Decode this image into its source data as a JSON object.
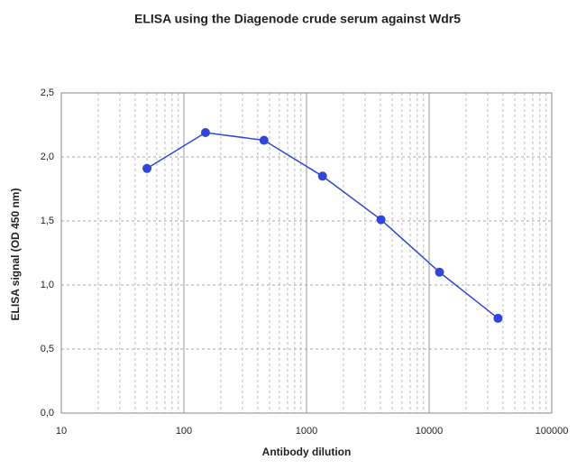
{
  "chart_data": {
    "type": "line",
    "title": "ELISA using the Diagenode crude serum against Wdr5",
    "x_label": "Antibody dilution",
    "y_label": "ELISA signal (OD 450 nm)",
    "x": [
      50,
      150,
      450,
      1350,
      4050,
      12150,
      36450
    ],
    "series": [
      {
        "color": "#2f46d8",
        "values": [
          1.91,
          2.19,
          2.13,
          1.85,
          1.51,
          1.1,
          0.74
        ]
      }
    ],
    "xlim": [
      10,
      100000
    ],
    "xticks": [
      10,
      100,
      1000,
      10000,
      100000
    ],
    "x_log": true,
    "ylim": [
      0,
      2.5
    ],
    "yticks": [
      {
        "value": 0,
        "label": "0,0"
      },
      {
        "value": 0.5,
        "label": "0,5"
      },
      {
        "value": 1,
        "label": "1,0"
      },
      {
        "value": 1.5,
        "label": "1,5"
      },
      {
        "value": 2,
        "label": "2,0"
      },
      {
        "value": 2.5,
        "label": "2,5"
      }
    ],
    "grid": true,
    "minor_grid": true
  }
}
